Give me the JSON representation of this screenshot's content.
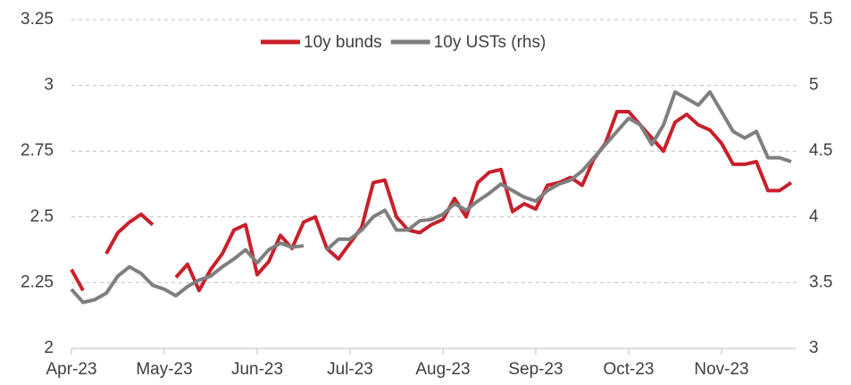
{
  "chart_data": {
    "type": "line",
    "categories": [
      "Apr-23",
      null,
      null,
      null,
      null,
      null,
      null,
      null,
      "May-23",
      null,
      null,
      null,
      null,
      null,
      null,
      null,
      "Jun-23",
      null,
      null,
      null,
      null,
      null,
      null,
      null,
      "Jul-23",
      null,
      null,
      null,
      null,
      null,
      null,
      null,
      "Aug-23",
      null,
      null,
      null,
      null,
      null,
      null,
      null,
      "Sep-23",
      null,
      null,
      null,
      null,
      null,
      null,
      null,
      "Oct-23",
      null,
      null,
      null,
      null,
      null,
      null,
      null,
      "Nov-23",
      null,
      null,
      null,
      null,
      null,
      null
    ],
    "series": [
      {
        "name": "10y bunds",
        "color": "#c8202a",
        "values": [
          2.3,
          2.22,
          null,
          2.36,
          2.44,
          2.48,
          2.51,
          2.47,
          null,
          2.27,
          2.32,
          2.22,
          2.3,
          2.36,
          2.45,
          2.47,
          2.28,
          2.33,
          2.43,
          2.38,
          2.48,
          2.5,
          2.38,
          2.34,
          2.4,
          2.46,
          2.63,
          2.64,
          2.5,
          2.45,
          2.44,
          2.47,
          2.49,
          2.57,
          2.5,
          2.63,
          2.67,
          2.68,
          2.52,
          2.55,
          2.53,
          2.62,
          2.63,
          2.65,
          2.62,
          2.72,
          2.78,
          2.9,
          2.9,
          2.85,
          2.8,
          2.75,
          2.86,
          2.89,
          2.85,
          2.83,
          2.78,
          2.7,
          2.7,
          2.71,
          2.6,
          2.6,
          2.63
        ]
      },
      {
        "name": "10y USTs (rhs)",
        "color": "#7f7f7f",
        "axis": "y2",
        "values": [
          3.45,
          3.35,
          3.37,
          3.42,
          3.55,
          3.62,
          3.57,
          3.48,
          3.45,
          3.4,
          3.47,
          3.52,
          3.55,
          3.62,
          3.68,
          3.75,
          3.65,
          3.75,
          3.8,
          3.77,
          3.78,
          null,
          3.75,
          3.83,
          3.83,
          3.9,
          4.0,
          4.05,
          3.9,
          3.9,
          3.97,
          3.98,
          4.02,
          4.1,
          4.05,
          4.12,
          4.18,
          4.25,
          4.2,
          4.15,
          4.12,
          4.2,
          4.25,
          4.28,
          4.35,
          4.45,
          4.55,
          4.65,
          4.75,
          4.7,
          4.55,
          4.7,
          4.95,
          4.9,
          4.85,
          4.95,
          4.8,
          4.65,
          4.6,
          4.65,
          4.45,
          4.45,
          4.42
        ]
      }
    ],
    "ylim": [
      2,
      3.25
    ],
    "yticks": [
      2,
      2.25,
      2.5,
      2.75,
      3,
      3.25
    ],
    "y2lim": [
      3,
      5.5
    ],
    "y2ticks": [
      3,
      3.5,
      4,
      4.5,
      5,
      5.5
    ],
    "grid": true,
    "legend": "top"
  }
}
